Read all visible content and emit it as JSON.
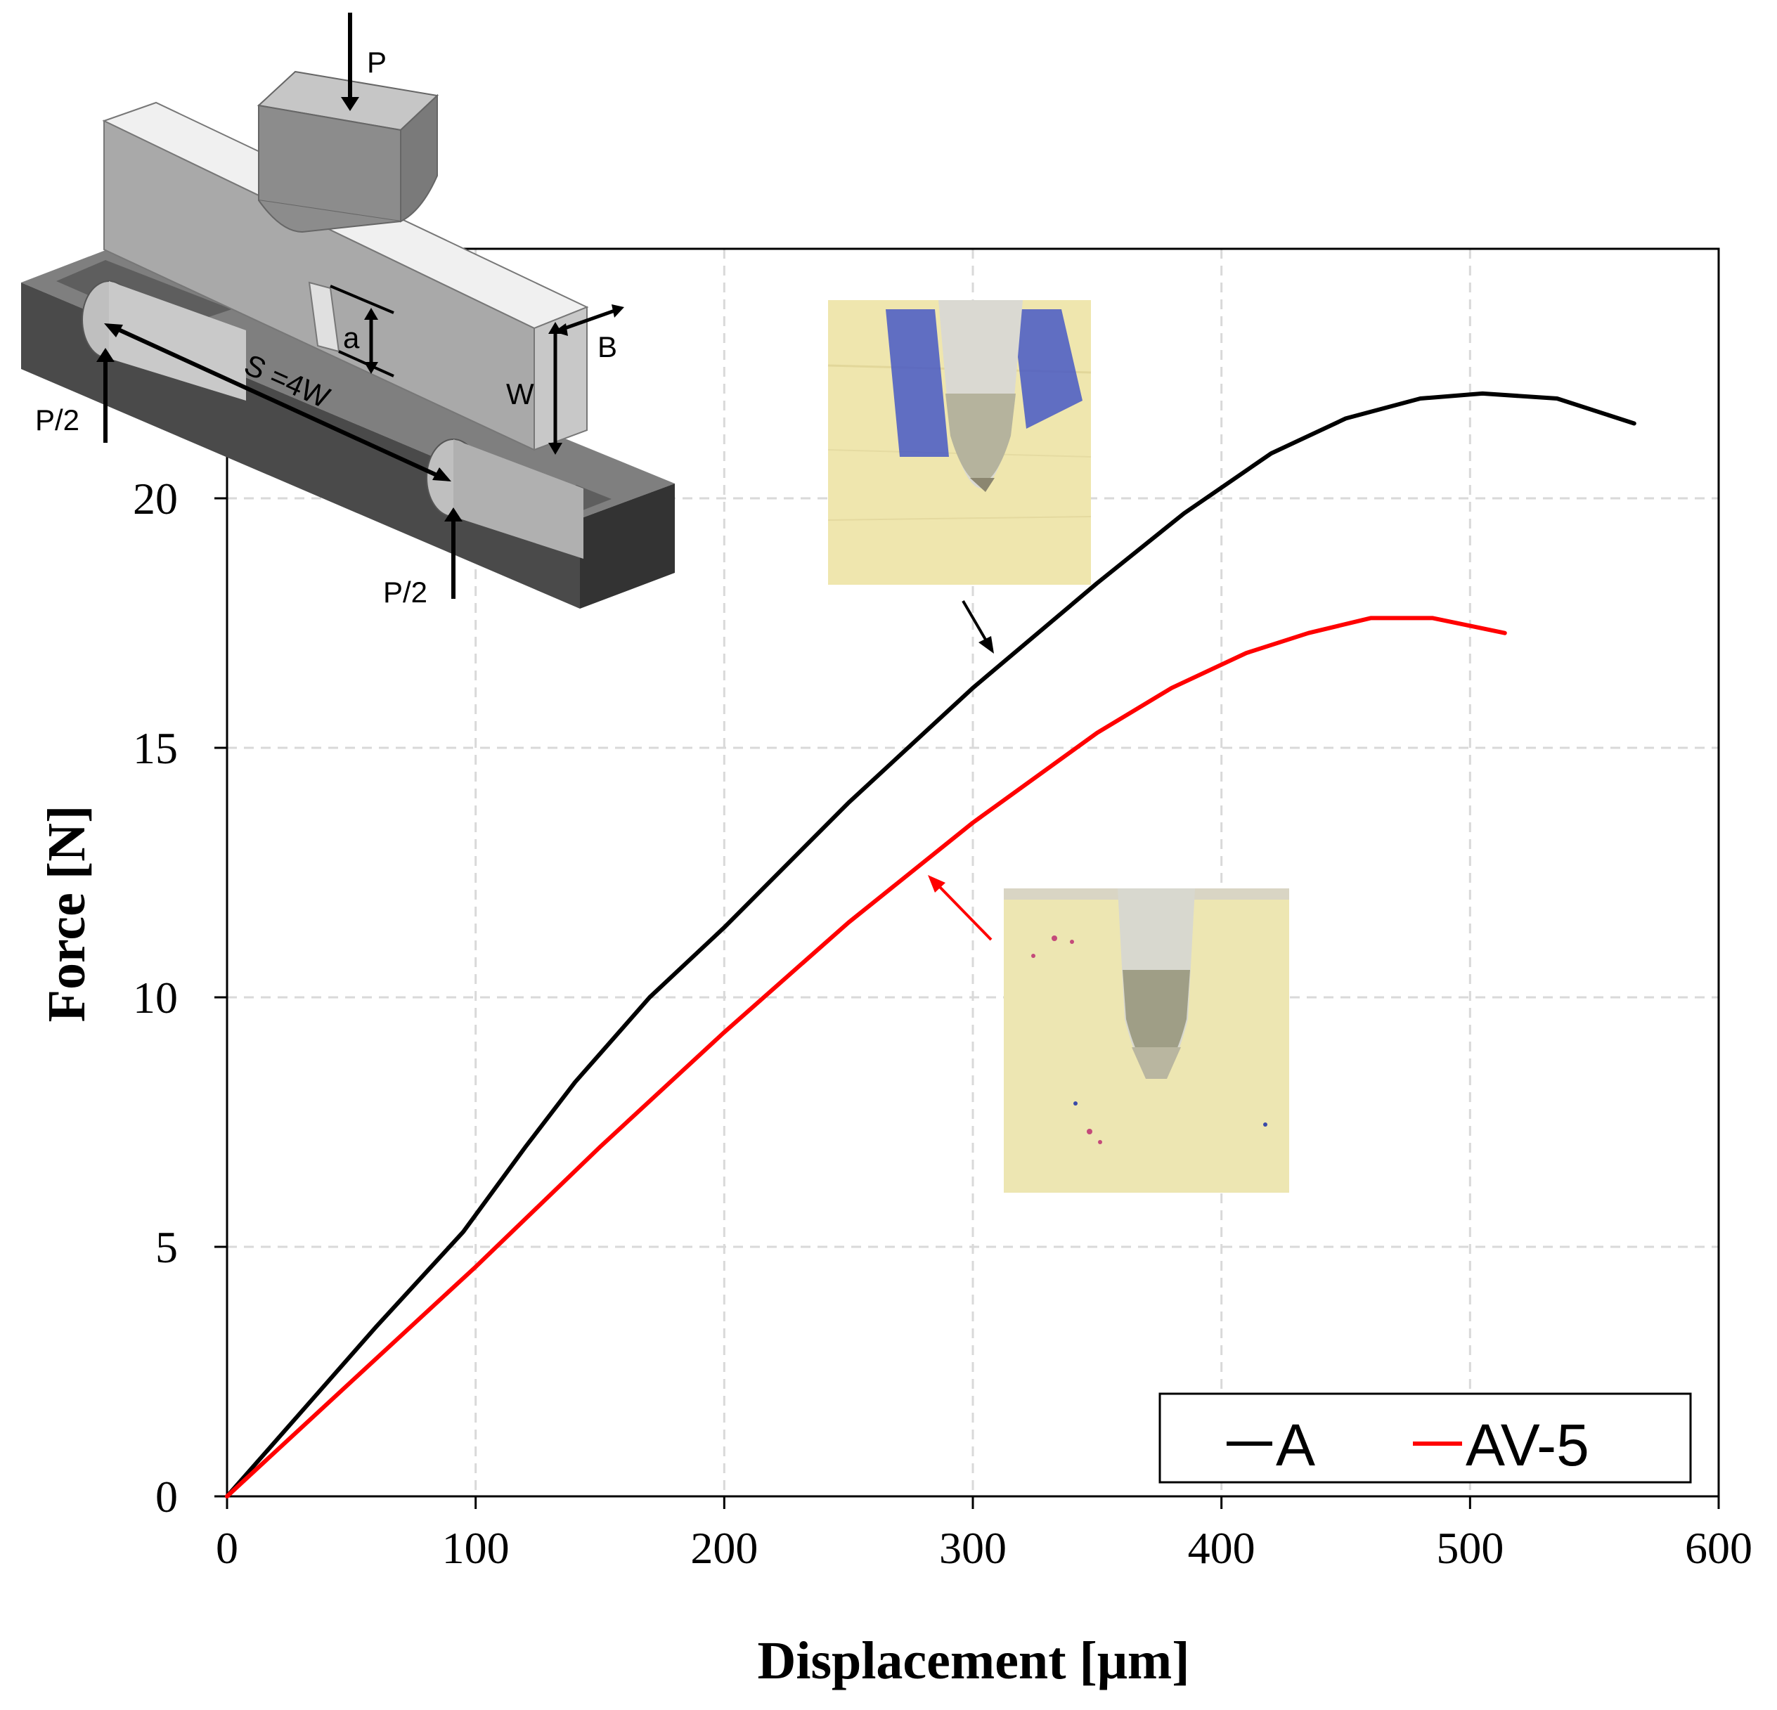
{
  "chart_data": {
    "type": "line",
    "xlabel": "Displacement [μm]",
    "ylabel": "Force [N]",
    "xlim": [
      0,
      600
    ],
    "ylim": [
      0,
      25
    ],
    "xticks": [
      0,
      100,
      200,
      300,
      400,
      500,
      600
    ],
    "yticks": [
      0,
      5,
      10,
      15,
      20
    ],
    "grid": true,
    "legend_position": "bottom-right",
    "series": [
      {
        "name": "A",
        "color": "#000000",
        "x": [
          0,
          30,
          60,
          95,
          120,
          140,
          170,
          200,
          250,
          300,
          350,
          385,
          420,
          450,
          480,
          505,
          535,
          566
        ],
        "y": [
          0,
          1.7,
          3.4,
          5.3,
          7.0,
          8.3,
          10.0,
          11.4,
          13.9,
          16.2,
          18.3,
          19.7,
          20.9,
          21.6,
          22.0,
          22.1,
          22.0,
          21.5
        ]
      },
      {
        "name": "AV-5",
        "color": "#ff0000",
        "x": [
          0,
          50,
          100,
          150,
          200,
          250,
          300,
          350,
          380,
          410,
          435,
          460,
          485,
          514
        ],
        "y": [
          0,
          2.3,
          4.6,
          7.0,
          9.3,
          11.5,
          13.5,
          15.3,
          16.2,
          16.9,
          17.3,
          17.6,
          17.6,
          17.3
        ]
      }
    ]
  },
  "diagram": {
    "labels": {
      "load": "P",
      "support_left": "P/2",
      "support_right": "P/2",
      "span": "S =4W",
      "crack": "a",
      "width": "W",
      "thickness": "B"
    }
  },
  "colors": {
    "grid": "#d9d9d9",
    "specimen_top": "#e6e6e6",
    "specimen_side": "#a9a9a9",
    "base": "#555555"
  }
}
